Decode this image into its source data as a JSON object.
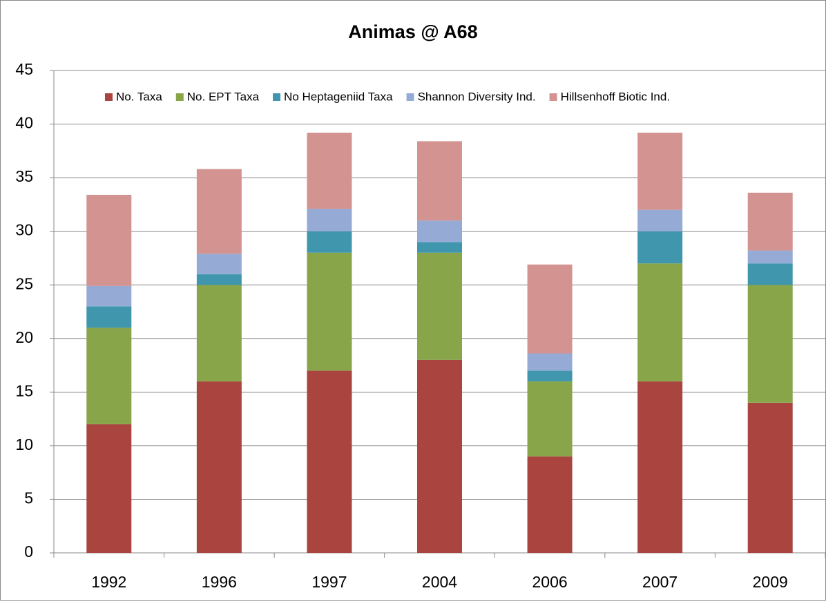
{
  "chart_data": {
    "type": "stacked_bar",
    "title": "Animas @ A68",
    "categories": [
      "1992",
      "1996",
      "1997",
      "2004",
      "2006",
      "2007",
      "2009"
    ],
    "series": [
      {
        "name": "No. Taxa",
        "color": "#a9443f",
        "values": [
          12,
          16,
          17,
          18,
          9,
          16,
          14
        ]
      },
      {
        "name": "No. EPT Taxa",
        "color": "#88a54a",
        "values": [
          9,
          9,
          11,
          10,
          7,
          11,
          11
        ]
      },
      {
        "name": "No Heptageniid Taxa",
        "color": "#3f96ad",
        "values": [
          2,
          1,
          2,
          1,
          1,
          3,
          2
        ]
      },
      {
        "name": "Shannon Diversity Ind.",
        "color": "#95abd6",
        "values": [
          1.9,
          1.9,
          2.1,
          2,
          1.6,
          2,
          1.2
        ]
      },
      {
        "name": "Hillsenhoff Biotic Ind.",
        "color": "#d39391",
        "values": [
          8.5,
          7.9,
          7.1,
          7.4,
          8.3,
          7.2,
          5.4
        ]
      }
    ],
    "ylim": [
      0,
      45
    ],
    "yticks": [
      0,
      5,
      10,
      15,
      20,
      25,
      30,
      35,
      40,
      45
    ],
    "grid": true,
    "legend": "top"
  }
}
